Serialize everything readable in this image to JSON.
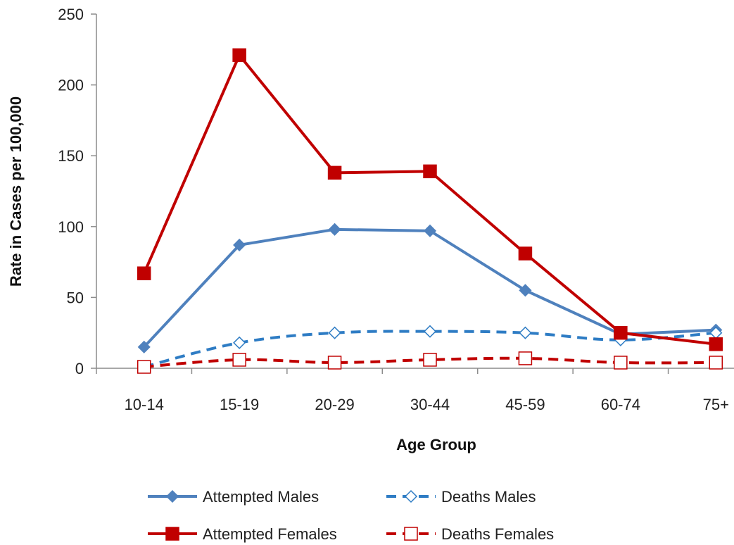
{
  "chart_data": {
    "type": "line",
    "xlabel": "Age Group",
    "ylabel": "Rate in Cases per 100,000",
    "categories": [
      "10-14",
      "15-19",
      "20-29",
      "30-44",
      "45-59",
      "60-74",
      "75+"
    ],
    "ylim": [
      0,
      250
    ],
    "yticks": [
      0,
      50,
      100,
      150,
      200,
      250
    ],
    "grid": false,
    "legend_position": "bottom",
    "series": [
      {
        "name": "Attempted Males",
        "values": [
          15,
          87,
          98,
          97,
          55,
          24,
          27
        ],
        "color": "#4F81BD",
        "marker": "diamond-filled",
        "dash": "solid"
      },
      {
        "name": "Deaths Males",
        "values": [
          1,
          18,
          25,
          26,
          25,
          20,
          25
        ],
        "color": "#2E7CC4",
        "marker": "diamond-open",
        "dash": "dashed"
      },
      {
        "name": "Attempted Females",
        "values": [
          67,
          221,
          138,
          139,
          81,
          25,
          17
        ],
        "color": "#C00000",
        "marker": "square-filled",
        "dash": "solid"
      },
      {
        "name": "Deaths Females",
        "values": [
          1,
          6,
          4,
          6,
          7,
          4,
          4
        ],
        "color": "#C00000",
        "marker": "square-open",
        "dash": "dashed"
      }
    ]
  }
}
